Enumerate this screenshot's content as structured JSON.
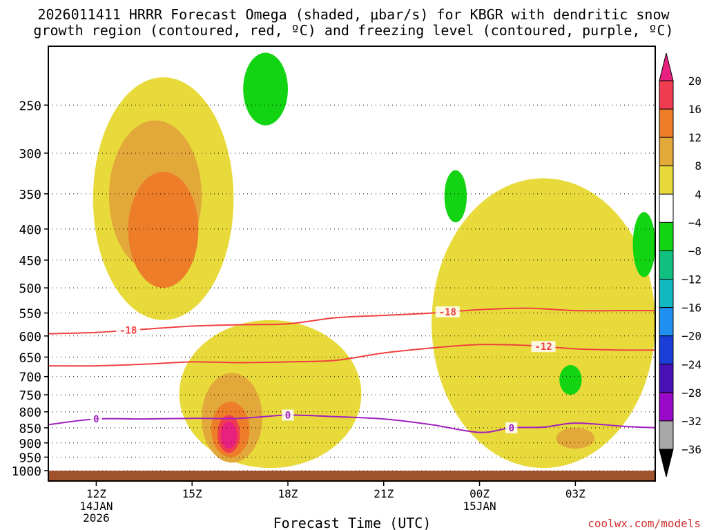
{
  "chart_data": {
    "type": "heatmap",
    "title_line1": "2026011411 HRRR Forecast Omega (shaded, μbar/s) for KBGR with dendritic snow",
    "title_line2": "growth region (contoured, red, ºC) and freezing level (contoured, purple, ºC)",
    "xlabel": "Forecast Time (UTC)",
    "ylabel": "",
    "credit": "coolwx.com/models",
    "y_axis": {
      "scale": "log-pressure",
      "range_hpa": [
        1040,
        200
      ],
      "ticks": [
        250,
        300,
        350,
        400,
        450,
        500,
        550,
        600,
        650,
        700,
        750,
        800,
        850,
        900,
        950,
        1000
      ]
    },
    "x_axis": {
      "range_hours": [
        -1.5,
        17.5
      ],
      "ticks": [
        {
          "h": 0,
          "label": "12Z",
          "sub1": "14JAN",
          "sub2": "2026"
        },
        {
          "h": 3,
          "label": "15Z",
          "sub1": "",
          "sub2": ""
        },
        {
          "h": 6,
          "label": "18Z",
          "sub1": "",
          "sub2": ""
        },
        {
          "h": 9,
          "label": "21Z",
          "sub1": "",
          "sub2": ""
        },
        {
          "h": 12,
          "label": "00Z",
          "sub1": "15JAN",
          "sub2": ""
        },
        {
          "h": 15,
          "label": "03Z",
          "sub1": "",
          "sub2": ""
        }
      ]
    },
    "colorbar": {
      "labels": [
        "20",
        "16",
        "12",
        "8",
        "4",
        "−4",
        "−8",
        "−12",
        "−16",
        "−20",
        "−24",
        "−28",
        "−32",
        "−36"
      ],
      "colors": [
        "#f03c50",
        "#ee7d2a",
        "#e3a83a",
        "#e8da3a",
        "#ffffff",
        "#12d412",
        "#10c080",
        "#12b8c0",
        "#1f8ff0",
        "#1a3ed6",
        "#4a10b8",
        "#9a08c8",
        "#a8a8a8"
      ],
      "top_arrow": "#e8207f",
      "bottom_arrow": "#000000"
    },
    "omega_features": [
      {
        "level": "4",
        "color": "#e8da3a",
        "desc": "upper ascent plume",
        "t_range": [
          -0.1,
          4.3
        ],
        "p_range": [
          225,
          565
        ]
      },
      {
        "level": "8",
        "color": "#e3a83a",
        "t_range": [
          0.4,
          3.3
        ],
        "p_range": [
          265,
          470
        ]
      },
      {
        "level": "12",
        "color": "#ee7d2a",
        "t_range": [
          1.0,
          3.2
        ],
        "p_range": [
          322,
          500
        ]
      },
      {
        "level": "4",
        "color": "#e8da3a",
        "desc": "low-level column",
        "t_range": [
          2.6,
          8.3
        ],
        "p_range": [
          565,
          990
        ]
      },
      {
        "level": "8",
        "color": "#e3a83a",
        "t_range": [
          3.3,
          5.2
        ],
        "p_range": [
          690,
          970
        ]
      },
      {
        "level": "12",
        "color": "#ee7d2a",
        "t_range": [
          3.6,
          4.8
        ],
        "p_range": [
          770,
          950
        ]
      },
      {
        "level": "16",
        "color": "#f03c50",
        "t_range": [
          3.8,
          4.5
        ],
        "p_range": [
          810,
          935
        ]
      },
      {
        "level": "20",
        "color": "#e8207f",
        "t_range": [
          3.9,
          4.4
        ],
        "p_range": [
          830,
          920
        ]
      },
      {
        "level": "4",
        "color": "#e8da3a",
        "desc": "overnight ascent",
        "t_range": [
          10.5,
          17.5
        ],
        "p_range": [
          330,
          990
        ]
      },
      {
        "level": "8",
        "color": "#e3a83a",
        "t_range": [
          14.4,
          15.6
        ],
        "p_range": [
          850,
          920
        ]
      },
      {
        "level": "-4",
        "color": "#12d412",
        "desc": "weak descent",
        "t_range": [
          4.6,
          6.0
        ],
        "p_range": [
          205,
          270
        ]
      },
      {
        "level": "-4",
        "color": "#12d412",
        "t_range": [
          10.9,
          11.6
        ],
        "p_range": [
          320,
          390
        ]
      },
      {
        "level": "-4",
        "color": "#12d412",
        "t_range": [
          16.8,
          17.5
        ],
        "p_range": [
          375,
          480
        ]
      },
      {
        "level": "-4",
        "color": "#12d412",
        "t_range": [
          14.5,
          15.2
        ],
        "p_range": [
          670,
          750
        ]
      }
    ],
    "contours": [
      {
        "name": "-18",
        "color": "#f04040",
        "label_at_hours": [
          1.0,
          11.0
        ],
        "x": [
          -1.5,
          0,
          1.5,
          3,
          4.5,
          6,
          7.5,
          9,
          10.5,
          12,
          13.5,
          15,
          16.5,
          17.5
        ],
        "p": [
          595,
          592,
          585,
          578,
          575,
          573,
          560,
          555,
          550,
          543,
          540,
          545,
          545,
          545
        ]
      },
      {
        "name": "-12",
        "color": "#f04040",
        "label_at_hours": [
          14.0
        ],
        "x": [
          -1.5,
          0,
          1.5,
          3,
          4.5,
          6,
          7.5,
          9,
          10.5,
          12,
          13.5,
          15,
          16.5,
          17.5
        ],
        "p": [
          672,
          672,
          668,
          662,
          664,
          662,
          658,
          640,
          628,
          620,
          622,
          630,
          633,
          633
        ]
      },
      {
        "name": "0",
        "color": "#a020c0",
        "label_at_hours": [
          0.0,
          6.0,
          13.0
        ],
        "x": [
          -1.5,
          0,
          1.5,
          3,
          4.5,
          6,
          7.5,
          9,
          10.5,
          12,
          13,
          14,
          15,
          16.5,
          17.5
        ],
        "p": [
          840,
          822,
          822,
          820,
          820,
          810,
          815,
          822,
          840,
          865,
          850,
          848,
          835,
          845,
          850
        ]
      }
    ],
    "ground": {
      "color": "#a0522d",
      "p_top": 1000
    }
  }
}
